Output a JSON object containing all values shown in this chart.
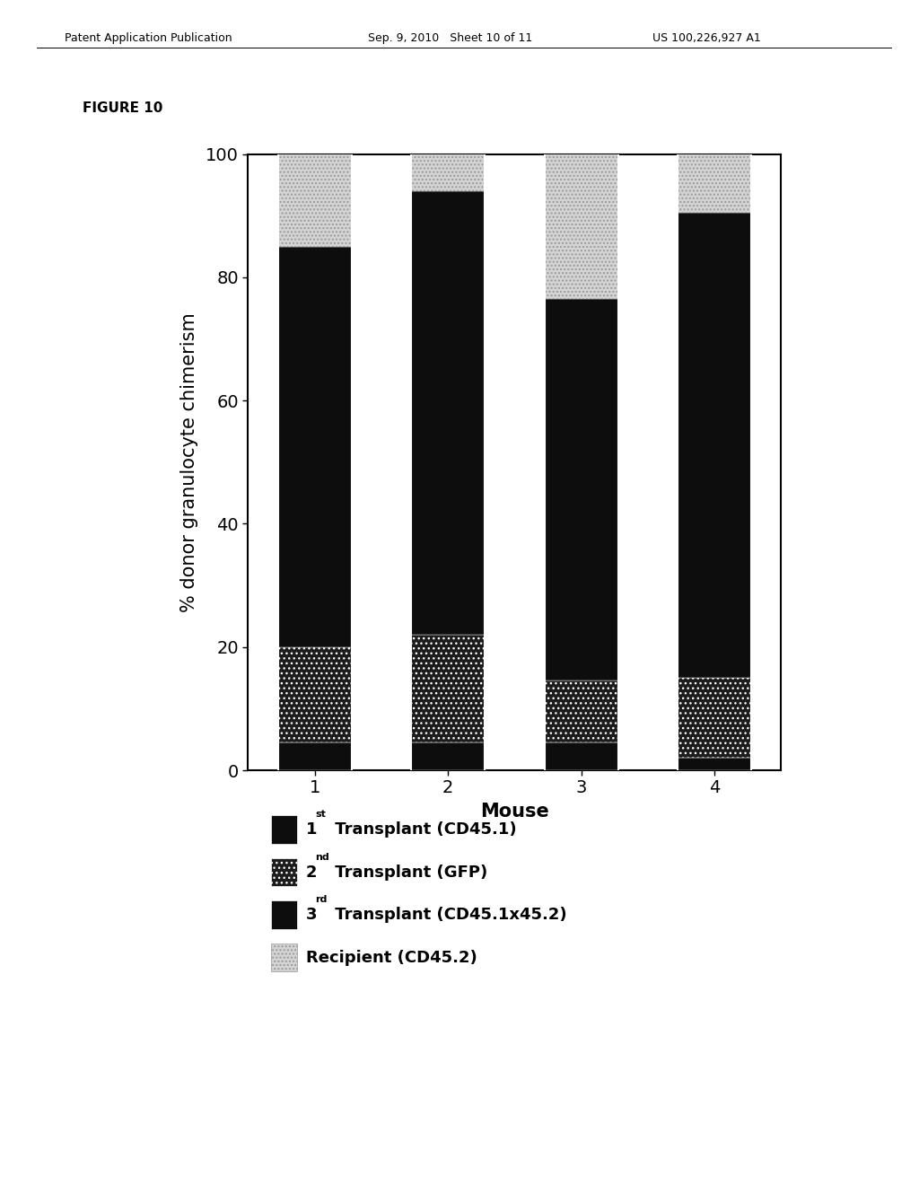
{
  "categories": [
    "1",
    "2",
    "3",
    "4"
  ],
  "xlabel": "Mouse",
  "ylabel": "% donor granulocyte chimerism",
  "figure_label": "FIGURE 10",
  "ylim": [
    0,
    100
  ],
  "yticks": [
    0,
    20,
    40,
    60,
    80,
    100
  ],
  "bar_width": 0.55,
  "t1_values": [
    4.5,
    4.5,
    4.5,
    2.0
  ],
  "t2_values": [
    15.5,
    17.5,
    10.0,
    13.0
  ],
  "t3_values": [
    65.0,
    72.0,
    62.0,
    75.5
  ],
  "rc_values": [
    15.0,
    6.0,
    23.5,
    9.5
  ],
  "t1_color": "#0d0d0d",
  "t2_color": "#1a1a1a",
  "t3_color": "#0d0d0d",
  "rc_color": "#d4d4d4",
  "header_left": "Patent Application Publication",
  "header_mid": "Sep. 9, 2010   Sheet 10 of 11",
  "header_right": "US 100,226,927 A1",
  "legend_labels": [
    "1st Transplant (CD45.1)",
    "2nd Transplant (GFP)",
    "3rd Transplant (CD45.1x45.2)",
    "Recipient (CD45.2)"
  ],
  "legend_superscripts": [
    "st",
    "nd",
    "rd",
    ""
  ],
  "legend_nums": [
    "1",
    "2",
    "3",
    ""
  ],
  "axis_label_fontsize": 15,
  "tick_fontsize": 14,
  "legend_fontsize": 13,
  "header_fontsize": 9
}
